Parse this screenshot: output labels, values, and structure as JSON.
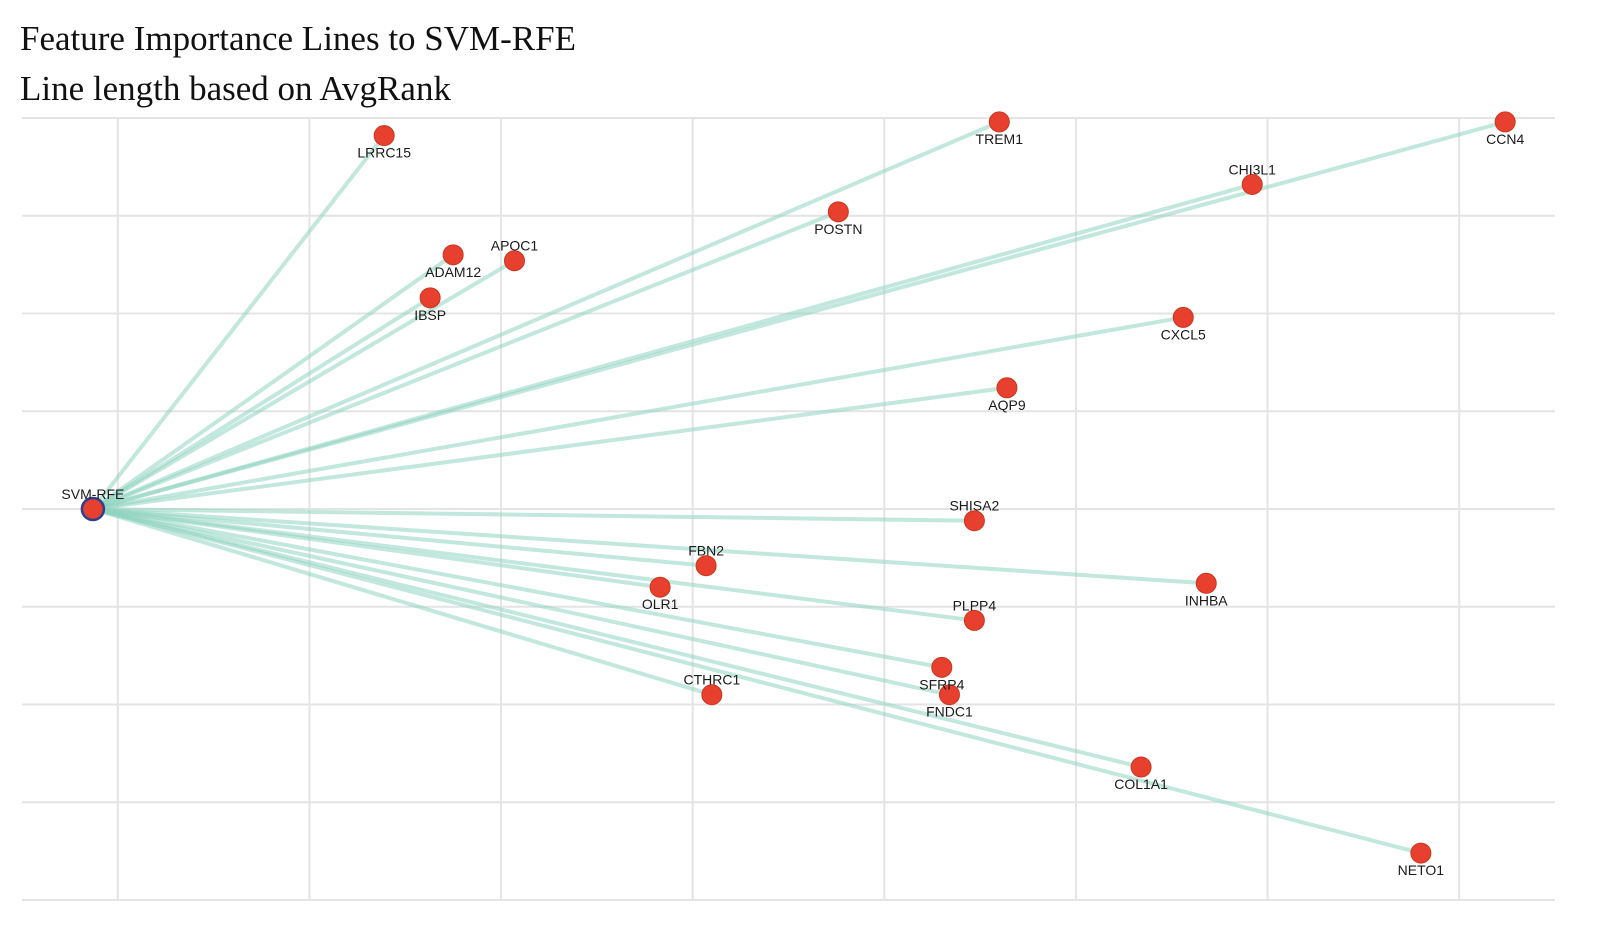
{
  "chart_data": {
    "type": "network",
    "title": "Feature Importance Lines to SVM-RFE",
    "subtitle": "Line length based on AvgRank",
    "colors": {
      "edge": "#8fd3bf",
      "node": "#e8402e",
      "node_stroke": "#c9361f",
      "center_fill": "#e8402e",
      "center_stroke": "#2d3f8f",
      "grid": "#e4e4e4"
    },
    "grid": true,
    "xlim": [
      -0.5,
      7.5
    ],
    "ylim": [
      -2.0,
      2.0
    ],
    "center": {
      "name": "SVM-RFE",
      "x": -0.13,
      "y": 0.0
    },
    "features": [
      {
        "name": "LRRC15",
        "x": 1.39,
        "y": 1.91
      },
      {
        "name": "TREM1",
        "x": 4.6,
        "y": 1.98
      },
      {
        "name": "CCN4",
        "x": 7.24,
        "y": 1.98
      },
      {
        "name": "CHI3L1",
        "x": 5.92,
        "y": 1.66
      },
      {
        "name": "POSTN",
        "x": 3.76,
        "y": 1.52
      },
      {
        "name": "APOC1",
        "x": 2.07,
        "y": 1.27
      },
      {
        "name": "ADAM12",
        "x": 1.75,
        "y": 1.3
      },
      {
        "name": "IBSP",
        "x": 1.63,
        "y": 1.08
      },
      {
        "name": "CXCL5",
        "x": 5.56,
        "y": 0.98
      },
      {
        "name": "AQP9",
        "x": 4.64,
        "y": 0.62
      },
      {
        "name": "SHISA2",
        "x": 4.47,
        "y": -0.06
      },
      {
        "name": "FBN2",
        "x": 3.07,
        "y": -0.29
      },
      {
        "name": "OLR1",
        "x": 2.83,
        "y": -0.4
      },
      {
        "name": "INHBA",
        "x": 5.68,
        "y": -0.38
      },
      {
        "name": "PLPP4",
        "x": 4.47,
        "y": -0.57
      },
      {
        "name": "SFRP4",
        "x": 4.3,
        "y": -0.81
      },
      {
        "name": "CTHRC1",
        "x": 3.1,
        "y": -0.95
      },
      {
        "name": "FNDC1",
        "x": 4.34,
        "y": -0.95
      },
      {
        "name": "COL1A1",
        "x": 5.34,
        "y": -1.32
      },
      {
        "name": "NETO1",
        "x": 6.8,
        "y": -1.76
      }
    ]
  }
}
